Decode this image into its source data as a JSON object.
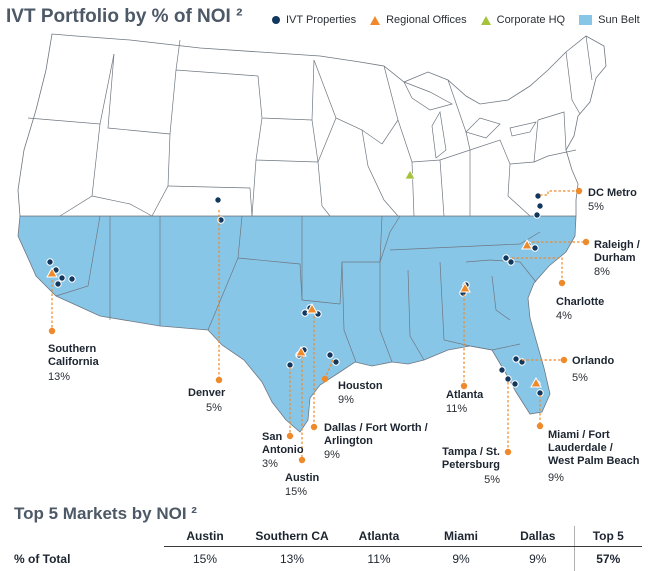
{
  "title": "IVT Portfolio by % of NOI ²",
  "legend": {
    "items": [
      {
        "label": "IVT Properties",
        "symbol": "circle",
        "color": "#13385e"
      },
      {
        "label": "Regional Offices",
        "symbol": "triangle",
        "color": "#ee8a2b"
      },
      {
        "label": "Corporate HQ",
        "symbol": "triangle",
        "color": "#a5c33a"
      },
      {
        "label": "Sun Belt",
        "symbol": "square",
        "color": "#88c6e8"
      }
    ]
  },
  "markets": [
    {
      "name_lines": [
        "DC Metro"
      ],
      "pct": "5%"
    },
    {
      "name_lines": [
        "Raleigh /",
        "Durham"
      ],
      "pct": "8%"
    },
    {
      "name_lines": [
        "Charlotte"
      ],
      "pct": "4%"
    },
    {
      "name_lines": [
        "Orlando"
      ],
      "pct": "5%"
    },
    {
      "name_lines": [
        "Miami / Fort",
        "Lauderdale /",
        "West Palm Beach"
      ],
      "pct": "9%"
    },
    {
      "name_lines": [
        "Tampa / St.",
        "Petersburg"
      ],
      "pct": "5%"
    },
    {
      "name_lines": [
        "Atlanta"
      ],
      "pct": "11%"
    },
    {
      "name_lines": [
        "Houston"
      ],
      "pct": "9%"
    },
    {
      "name_lines": [
        "Dallas / Fort Worth /",
        "Arlington"
      ],
      "pct": "9%"
    },
    {
      "name_lines": [
        "Austin"
      ],
      "pct": "15%"
    },
    {
      "name_lines": [
        "San",
        "Antonio"
      ],
      "pct": "3%"
    },
    {
      "name_lines": [
        "Denver"
      ],
      "pct": "5%"
    },
    {
      "name_lines": [
        "Southern",
        "California"
      ],
      "pct": "13%"
    }
  ],
  "top5": {
    "title": "Top 5 Markets by NOI ²",
    "row_label": "% of Total",
    "columns": [
      {
        "header": "Austin",
        "value": "15%"
      },
      {
        "header": "Southern CA",
        "value": "13%"
      },
      {
        "header": "Atlanta",
        "value": "11%"
      },
      {
        "header": "Miami",
        "value": "9%"
      },
      {
        "header": "Dallas",
        "value": "9%"
      }
    ],
    "total": {
      "header": "Top 5",
      "value": "57%"
    }
  },
  "colors": {
    "sunbelt": "#88c6e8",
    "land": "#ffffff",
    "border": "#6f7780",
    "property": "#13385e",
    "office": "#ee8a2b",
    "hq": "#a5c33a"
  }
}
